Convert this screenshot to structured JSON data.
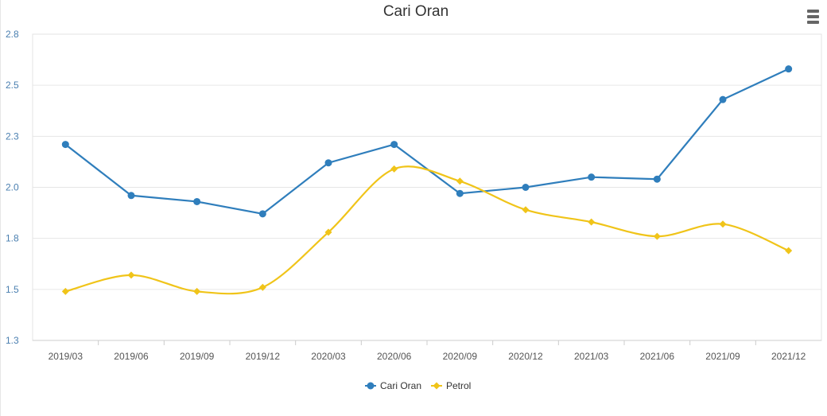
{
  "chart_data": {
    "type": "line",
    "title": "Cari Oran",
    "categories": [
      "2019/03",
      "2019/06",
      "2019/09",
      "2019/12",
      "2020/03",
      "2020/06",
      "2020/09",
      "2020/12",
      "2021/03",
      "2021/06",
      "2021/09",
      "2021/12"
    ],
    "y_ticks": [
      "2.8",
      "2.5",
      "2.3",
      "2.0",
      "1.8",
      "1.5",
      "1.3"
    ],
    "ylim": [
      1.25,
      2.75
    ],
    "grid": true,
    "legend_position": "bottom-center",
    "series": [
      {
        "name": "Cari Oran",
        "color": "#2f7ebc",
        "marker": "circle",
        "smooth": false,
        "values": [
          2.21,
          1.96,
          1.93,
          1.87,
          2.12,
          2.21,
          1.97,
          2.0,
          2.05,
          2.04,
          2.43,
          2.58
        ]
      },
      {
        "name": "Petrol",
        "color": "#f0c419",
        "marker": "diamond",
        "smooth": true,
        "values": [
          1.49,
          1.57,
          1.49,
          1.51,
          1.78,
          2.09,
          2.03,
          1.89,
          1.83,
          1.76,
          1.82,
          1.69
        ]
      }
    ]
  }
}
